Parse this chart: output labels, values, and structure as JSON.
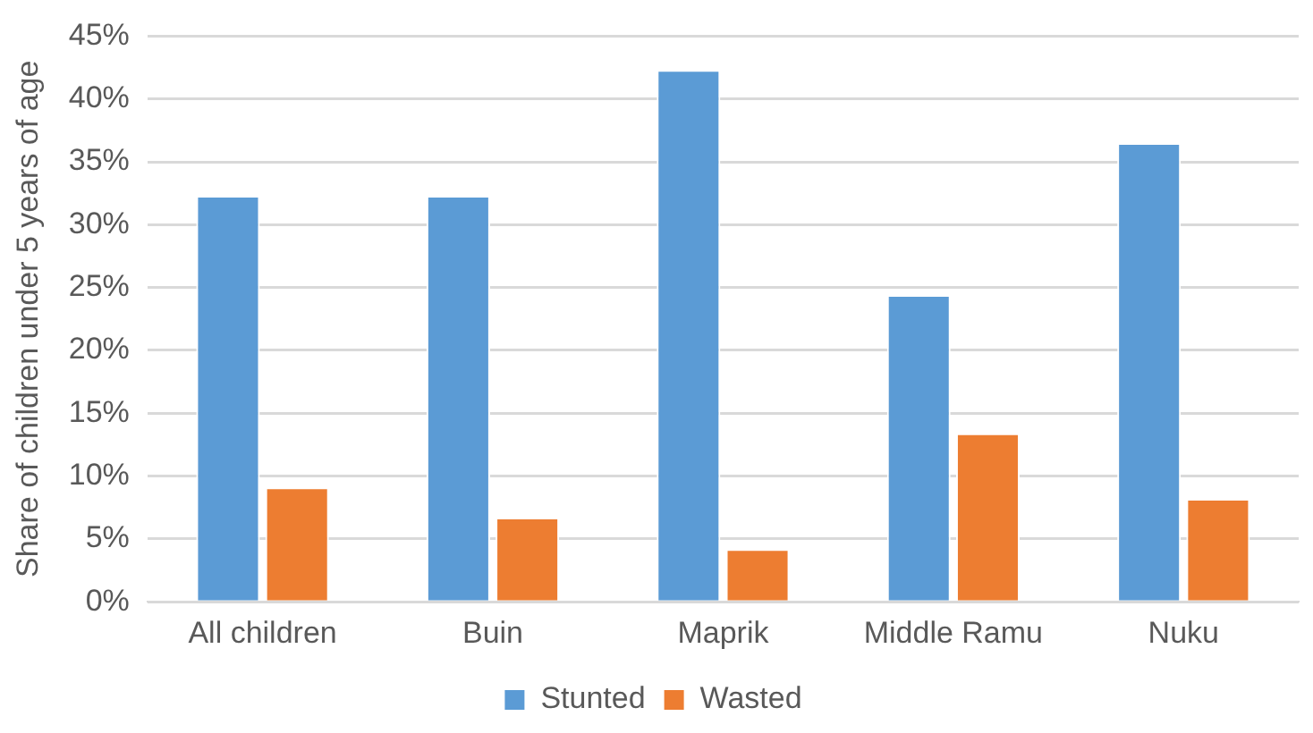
{
  "chart_data": {
    "type": "bar",
    "ylabel": "Share of children under 5 years of age",
    "categories": [
      "All children",
      "Buin",
      "Maprik",
      "Middle Ramu",
      "Nuku"
    ],
    "series": [
      {
        "name": "Stunted",
        "color": "#5b9bd5",
        "values": [
          32.3,
          32.3,
          42.3,
          24.4,
          36.5
        ]
      },
      {
        "name": "Wasted",
        "color": "#ed7d31",
        "values": [
          9.1,
          6.7,
          4.2,
          13.4,
          8.2
        ]
      }
    ],
    "ylim": [
      0,
      45
    ],
    "yticks": [
      {
        "value": 0,
        "label": "0%"
      },
      {
        "value": 5,
        "label": "5%"
      },
      {
        "value": 10,
        "label": "10%"
      },
      {
        "value": 15,
        "label": "15%"
      },
      {
        "value": 20,
        "label": "20%"
      },
      {
        "value": 25,
        "label": "25%"
      },
      {
        "value": 30,
        "label": "30%"
      },
      {
        "value": 35,
        "label": "35%"
      },
      {
        "value": 40,
        "label": "40%"
      },
      {
        "value": 45,
        "label": "45%"
      }
    ],
    "grid": "y",
    "legend": "bottom"
  }
}
